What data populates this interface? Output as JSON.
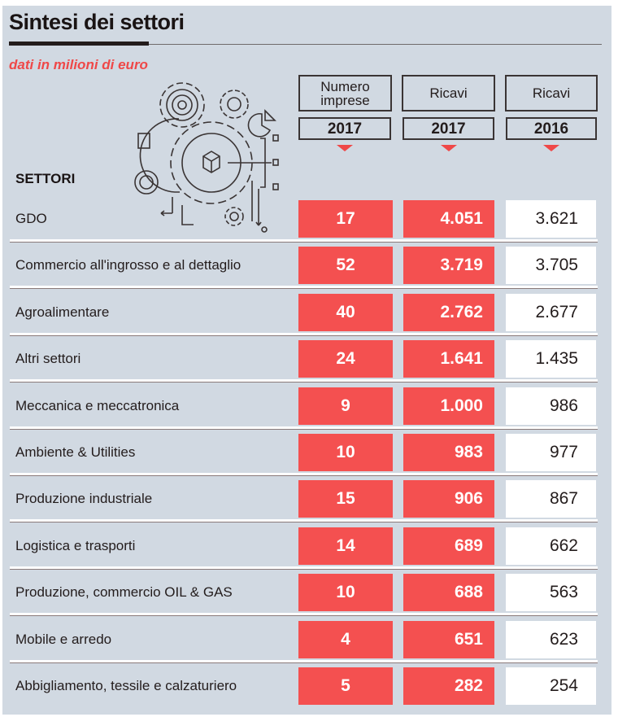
{
  "title": "Sintesi dei settori",
  "subtitle": "dati in milioni di euro",
  "colors": {
    "accent": "#f45050",
    "background": "#d1d9e2",
    "text": "#231c1c"
  },
  "icon": "gears-technology-icon",
  "chart_data": {
    "type": "table",
    "row_header": "SETTORI",
    "columns": [
      {
        "label": "Numero imprese",
        "year": "2017"
      },
      {
        "label": "Ricavi",
        "year": "2017"
      },
      {
        "label": "Ricavi",
        "year": "2016"
      }
    ],
    "rows": [
      {
        "sector": "GDO",
        "imprese_2017": "17",
        "ricavi_2017": "4.051",
        "ricavi_2016": "3.621"
      },
      {
        "sector": "Commercio all'ingrosso e al dettaglio",
        "imprese_2017": "52",
        "ricavi_2017": "3.719",
        "ricavi_2016": "3.705"
      },
      {
        "sector": "Agroalimentare",
        "imprese_2017": "40",
        "ricavi_2017": "2.762",
        "ricavi_2016": "2.677"
      },
      {
        "sector": "Altri settori",
        "imprese_2017": "24",
        "ricavi_2017": "1.641",
        "ricavi_2016": "1.435"
      },
      {
        "sector": "Meccanica e meccatronica",
        "imprese_2017": "9",
        "ricavi_2017": "1.000",
        "ricavi_2016": "986"
      },
      {
        "sector": "Ambiente & Utilities",
        "imprese_2017": "10",
        "ricavi_2017": "983",
        "ricavi_2016": "977"
      },
      {
        "sector": "Produzione industriale",
        "imprese_2017": "15",
        "ricavi_2017": "906",
        "ricavi_2016": "867"
      },
      {
        "sector": "Logistica e trasporti",
        "imprese_2017": "14",
        "ricavi_2017": "689",
        "ricavi_2016": "662"
      },
      {
        "sector": "Produzione, commercio  OIL & GAS",
        "imprese_2017": "10",
        "ricavi_2017": "688",
        "ricavi_2016": "563"
      },
      {
        "sector": "Mobile e arredo",
        "imprese_2017": "4",
        "ricavi_2017": "651",
        "ricavi_2016": "623"
      },
      {
        "sector": "Abbigliamento, tessile e calzaturiero",
        "imprese_2017": "5",
        "ricavi_2017": "282",
        "ricavi_2016": "254"
      }
    ]
  }
}
